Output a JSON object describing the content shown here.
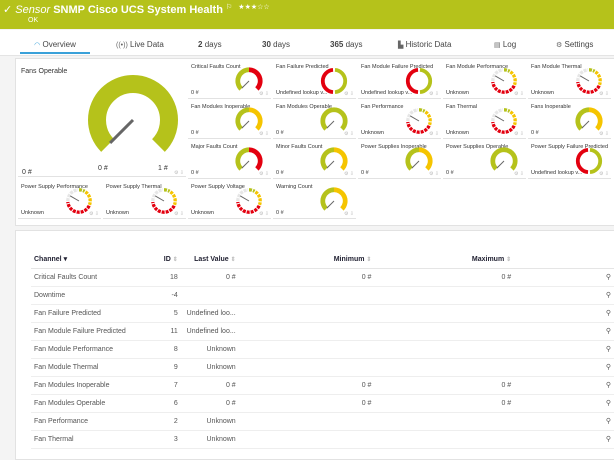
{
  "header": {
    "prefix": "Sensor",
    "title": "SNMP Cisco UCS System Health",
    "status": "OK",
    "stars": "★★★☆☆",
    "color": "#b5c21b"
  },
  "tabs": [
    {
      "label": "Overview",
      "icon": "gauge-icon"
    },
    {
      "label": "Live Data",
      "icon": "live-icon"
    },
    {
      "num": "2",
      "label": "days"
    },
    {
      "num": "30",
      "label": "days"
    },
    {
      "num": "365",
      "label": "days"
    },
    {
      "label": "Historic Data",
      "icon": "chart-icon"
    },
    {
      "label": "Log",
      "icon": "log-icon"
    },
    {
      "label": "Settings",
      "icon": "gear-icon"
    }
  ],
  "big_gauge": {
    "name": "Fans Operable",
    "value": "0 #",
    "min": "0 #",
    "max": "1 #",
    "type": "green"
  },
  "gauges": [
    {
      "name": "Critical Faults Count",
      "value": "0 #",
      "type": "red"
    },
    {
      "name": "Fan Failure Predicted",
      "value": "Undefined lookup v...",
      "type": "ring"
    },
    {
      "name": "Fan Module Failure Predicted",
      "value": "Undefined lookup v...",
      "type": "ring"
    },
    {
      "name": "Fan Module Performance",
      "value": "Unknown",
      "type": "unknown"
    },
    {
      "name": "Fan Module Thermal",
      "value": "Unknown",
      "type": "unknown"
    },
    {
      "name": "Fan Modules Inoperable",
      "value": "0 #",
      "type": "yellow"
    },
    {
      "name": "Fan Modules Operable",
      "value": "0 #",
      "type": "green"
    },
    {
      "name": "Fan Performance",
      "value": "Unknown",
      "type": "unknown"
    },
    {
      "name": "Fan Thermal",
      "value": "Unknown",
      "type": "unknown"
    },
    {
      "name": "Fans Inoperable",
      "value": "0 #",
      "type": "yellow"
    },
    {
      "name": "Major Faults Count",
      "value": "0 #",
      "type": "red"
    },
    {
      "name": "Minor Faults Count",
      "value": "0 #",
      "type": "yellow"
    },
    {
      "name": "Power Supplies Inoperable",
      "value": "0 #",
      "type": "yellow"
    },
    {
      "name": "Power Supplies Operable",
      "value": "0 #",
      "type": "green"
    },
    {
      "name": "Power Supply Failure Predicted",
      "value": "Undefined lookup v...",
      "type": "ring"
    },
    {
      "name": "Power Supply Performance",
      "value": "Unknown",
      "type": "unknown"
    },
    {
      "name": "Power Supply Thermal",
      "value": "Unknown",
      "type": "unknown"
    },
    {
      "name": "Power Supply Voltage",
      "value": "Unknown",
      "type": "unknown"
    },
    {
      "name": "Warning Count",
      "value": "0 #",
      "type": "yellow"
    }
  ],
  "table": {
    "headers": [
      "Channel",
      "ID",
      "Last Value",
      "Minimum",
      "Maximum"
    ],
    "rows": [
      [
        "Critical Faults Count",
        "18",
        "0 #",
        "0 #",
        "0 #"
      ],
      [
        "Downtime",
        "-4",
        "",
        "",
        ""
      ],
      [
        "Fan Failure Predicted",
        "5",
        "Undefined loo...",
        "",
        ""
      ],
      [
        "Fan Module Failure Predicted",
        "11",
        "Undefined loo...",
        "",
        ""
      ],
      [
        "Fan Module Performance",
        "8",
        "Unknown",
        "",
        ""
      ],
      [
        "Fan Module Thermal",
        "9",
        "Unknown",
        "",
        ""
      ],
      [
        "Fan Modules Inoperable",
        "7",
        "0 #",
        "0 #",
        "0 #"
      ],
      [
        "Fan Modules Operable",
        "6",
        "0 #",
        "0 #",
        "0 #"
      ],
      [
        "Fan Performance",
        "2",
        "Unknown",
        "",
        ""
      ],
      [
        "Fan Thermal",
        "3",
        "Unknown",
        "",
        ""
      ]
    ]
  },
  "colors": {
    "green": "#b5c21b",
    "red": "#e3000f",
    "yellow": "#f5c400",
    "gray": "#e6e6e6",
    "accent": "#3aa1d9"
  }
}
